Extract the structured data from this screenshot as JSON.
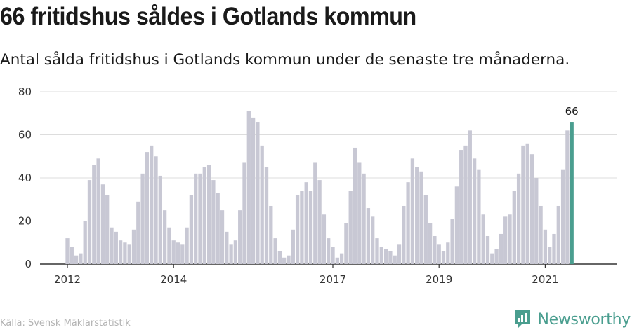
{
  "header": {
    "title": "66 fritidshus såldes i Gotlands kommun",
    "subtitle": "Antal sålda fritidshus i Gotlands kommun under de senaste tre månaderna."
  },
  "footer": {
    "source": "Källa: Svensk Mäklarstatistik",
    "brand": "Newsworthy",
    "brand_icon": "newsworthy-logo-icon"
  },
  "colors": {
    "bar": "#c8c8d4",
    "highlight": "#4a9e8f",
    "grid": "#dddddd",
    "axis": "#333333"
  },
  "chart_data": {
    "type": "bar",
    "title": "66 fritidshus såldes i Gotlands kommun",
    "subtitle": "Antal sålda fritidshus i Gotlands kommun under de senaste tre månaderna.",
    "xlabel": "",
    "ylabel": "",
    "ylim": [
      0,
      80
    ],
    "yticks": [
      0,
      20,
      40,
      60,
      80
    ],
    "grid": true,
    "start": "2012-01",
    "x_tick_labels": [
      {
        "label": "2012",
        "month": "2012-01"
      },
      {
        "label": "2014",
        "month": "2014-01"
      },
      {
        "label": "2017",
        "month": "2017-01"
      },
      {
        "label": "2019",
        "month": "2019-01"
      },
      {
        "label": "2021",
        "month": "2021-01"
      }
    ],
    "values": [
      12,
      8,
      4,
      5,
      20,
      39,
      46,
      49,
      37,
      32,
      17,
      15,
      11,
      10,
      9,
      16,
      29,
      42,
      52,
      55,
      50,
      41,
      25,
      17,
      11,
      10,
      9,
      17,
      32,
      42,
      42,
      45,
      46,
      39,
      33,
      25,
      15,
      9,
      11,
      25,
      47,
      71,
      68,
      66,
      55,
      45,
      27,
      12,
      6,
      3,
      4,
      16,
      32,
      34,
      38,
      34,
      47,
      39,
      23,
      12,
      8,
      3,
      5,
      19,
      34,
      54,
      47,
      42,
      26,
      22,
      12,
      8,
      7,
      6,
      4,
      9,
      27,
      38,
      49,
      45,
      43,
      32,
      19,
      13,
      9,
      6,
      10,
      21,
      36,
      53,
      55,
      62,
      49,
      44,
      23,
      13,
      5,
      7,
      14,
      22,
      23,
      34,
      42,
      55,
      56,
      51,
      40,
      27,
      16,
      8,
      14,
      27,
      44,
      62,
      66
    ],
    "highlight_value": 66
  }
}
